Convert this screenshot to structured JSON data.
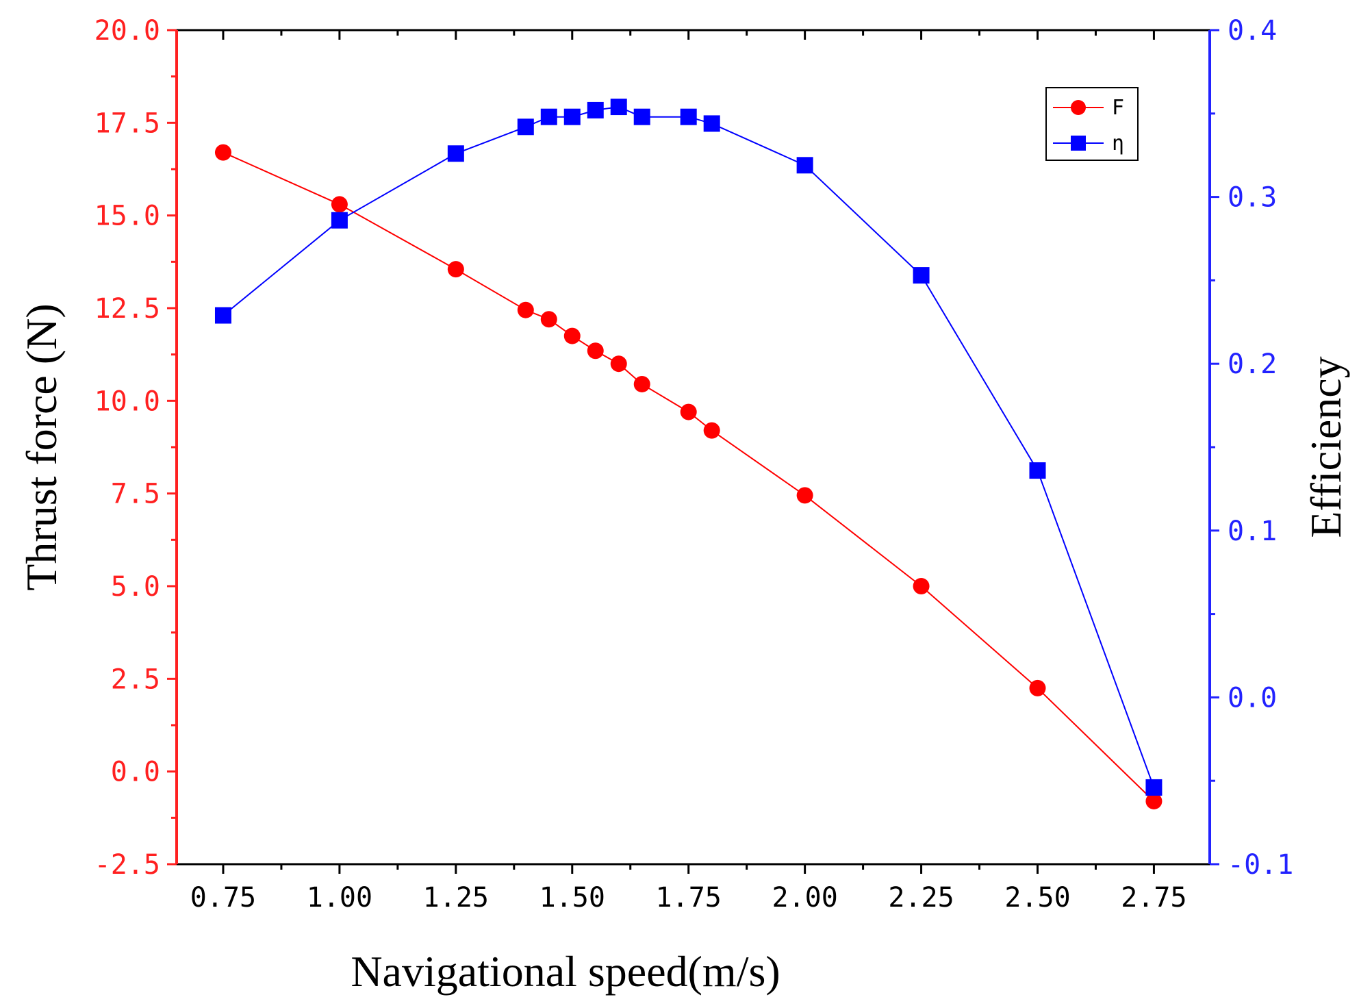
{
  "chart_data": {
    "type": "line",
    "title": "",
    "xlabel": "Navigational speed(m/s)",
    "ylabel_left": "Thrust force (N)",
    "ylabel_right": "Efficiency",
    "xlim": [
      0.65,
      2.87
    ],
    "ylim_left": [
      -2.5,
      20.0
    ],
    "ylim_right": [
      -0.1,
      0.4
    ],
    "x_ticks": [
      "0.75",
      "1.00",
      "1.25",
      "1.50",
      "1.75",
      "2.00",
      "2.25",
      "2.50",
      "2.75"
    ],
    "y_left_ticks": [
      "-2.5",
      "0.0",
      "2.5",
      "5.0",
      "7.5",
      "10.0",
      "12.5",
      "15.0",
      "17.5",
      "20.0"
    ],
    "y_right_ticks": [
      "-0.1",
      "0.0",
      "0.1",
      "0.2",
      "0.3",
      "0.4"
    ],
    "legend_position": "top-right",
    "colors": {
      "left_axis": "#ff2020",
      "right_axis": "#2222ff",
      "F": "#ff0000",
      "eta": "#0000ff"
    },
    "series": [
      {
        "name": "F",
        "axis": "left",
        "marker": "circle",
        "color": "#ff0000",
        "x": [
          0.75,
          1.0,
          1.25,
          1.4,
          1.45,
          1.5,
          1.55,
          1.6,
          1.65,
          1.75,
          1.8,
          2.0,
          2.25,
          2.5,
          2.75
        ],
        "values": [
          16.7,
          15.3,
          13.55,
          12.45,
          12.2,
          11.75,
          11.35,
          11.0,
          10.45,
          9.7,
          9.2,
          7.45,
          5.0,
          2.25,
          -0.8
        ]
      },
      {
        "name": "η",
        "axis": "right",
        "marker": "square",
        "color": "#0000ff",
        "x": [
          0.75,
          1.0,
          1.25,
          1.4,
          1.45,
          1.5,
          1.55,
          1.6,
          1.65,
          1.75,
          1.8,
          2.0,
          2.25,
          2.5,
          2.75
        ],
        "values": [
          0.229,
          0.286,
          0.326,
          0.342,
          0.348,
          0.348,
          0.352,
          0.354,
          0.348,
          0.348,
          0.344,
          0.319,
          0.253,
          0.136,
          -0.054
        ]
      }
    ]
  }
}
